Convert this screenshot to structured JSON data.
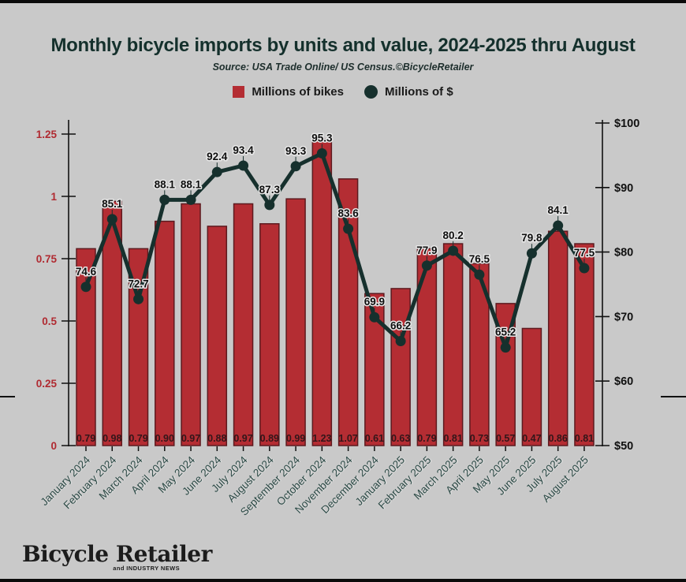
{
  "page": {
    "title": "Monthly bicycle imports by units and value, 2024-2025 thru August",
    "source": "Source: USA Trade Online/ US Census.©BicycleRetailer",
    "logo_name": "Bicycle Retailer",
    "logo_tagline": "and INDUSTRY NEWS",
    "background": "#c9c9c9"
  },
  "legend": {
    "items": [
      {
        "label": "Millions of bikes",
        "shape": "square",
        "color": "#b42d33"
      },
      {
        "label": "Millions of $",
        "shape": "circle",
        "color": "#16302d"
      }
    ]
  },
  "chart_data": {
    "type": "bar+line combo",
    "title": "Monthly bicycle imports by units and value, 2024-2025 thru August",
    "categories": [
      "January 2024",
      "February 2024",
      "March 2024",
      "April 2024",
      "May 2024",
      "June 2024",
      "July 2024",
      "August 2024",
      "September 2024",
      "October 2024",
      "November 2024",
      "December 2024",
      "January 2025",
      "February 2025",
      "March 2025",
      "April 2025",
      "May 2025",
      "June 2025",
      "July 2025",
      "August 2025"
    ],
    "series": [
      {
        "name": "Millions of bikes",
        "type": "bar",
        "axis": "left",
        "color": "#b42d33",
        "border_color": "#5d1a1f",
        "label_color": "#33161a",
        "values": [
          0.79,
          0.98,
          0.79,
          0.9,
          0.97,
          0.88,
          0.97,
          0.89,
          0.99,
          1.23,
          1.07,
          0.61,
          0.63,
          0.79,
          0.81,
          0.73,
          0.57,
          0.47,
          0.86,
          0.81
        ]
      },
      {
        "name": "Millions of $",
        "type": "line",
        "axis": "right",
        "color": "#16302d",
        "label_color": "#0f0f0f",
        "values": [
          74.6,
          85.1,
          72.7,
          88.1,
          88.1,
          92.4,
          93.4,
          87.3,
          93.3,
          95.3,
          83.6,
          69.9,
          66.2,
          77.9,
          80.2,
          76.5,
          65.2,
          79.8,
          84.1,
          77.5
        ]
      }
    ],
    "left_axis": {
      "tick_labels": [
        "0",
        "0.25",
        "0.5",
        "0.75",
        "1",
        "1.25"
      ],
      "tick_values": [
        0,
        0.25,
        0.5,
        0.75,
        1,
        1.25
      ],
      "min": 0,
      "max": 1.25,
      "label_color": "#b02a31"
    },
    "right_axis": {
      "tick_labels": [
        "$50",
        "$60",
        "$70",
        "$80",
        "$90",
        "$100"
      ],
      "tick_values": [
        50,
        60,
        70,
        80,
        90,
        100
      ],
      "min": 50,
      "max": 100,
      "label_color": "#111111"
    },
    "grid": false,
    "legend_position": "top",
    "xtick_rotation": 45,
    "xtick_color": "#2c4a46"
  }
}
